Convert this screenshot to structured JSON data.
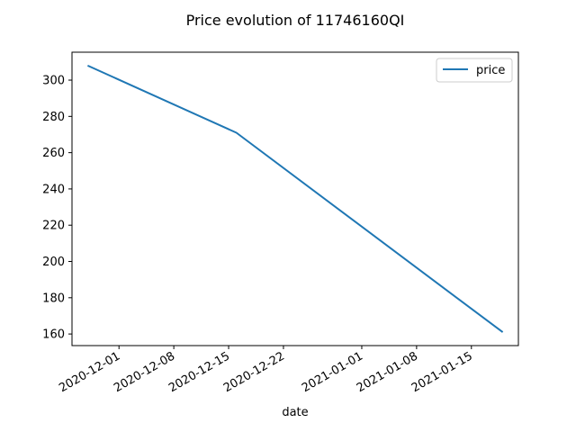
{
  "chart_data": {
    "type": "line",
    "title": "Price evolution of 11746160QI",
    "xlabel": "date",
    "ylabel": "",
    "x_type": "date",
    "xlim": [
      "2020-11-25",
      "2021-01-21"
    ],
    "ylim": [
      153.6,
      315.4
    ],
    "x_ticks": [
      "2020-12-01",
      "2020-12-08",
      "2020-12-15",
      "2020-12-22",
      "2021-01-01",
      "2021-01-08",
      "2021-01-15"
    ],
    "y_ticks": [
      160,
      180,
      200,
      220,
      240,
      260,
      280,
      300
    ],
    "grid": false,
    "legend_position": "top-right",
    "series": [
      {
        "name": "price",
        "color": "#1f77b4",
        "x": [
          "2020-11-27",
          "2020-12-16",
          "2021-01-19"
        ],
        "y": [
          308,
          271,
          161
        ]
      }
    ]
  }
}
